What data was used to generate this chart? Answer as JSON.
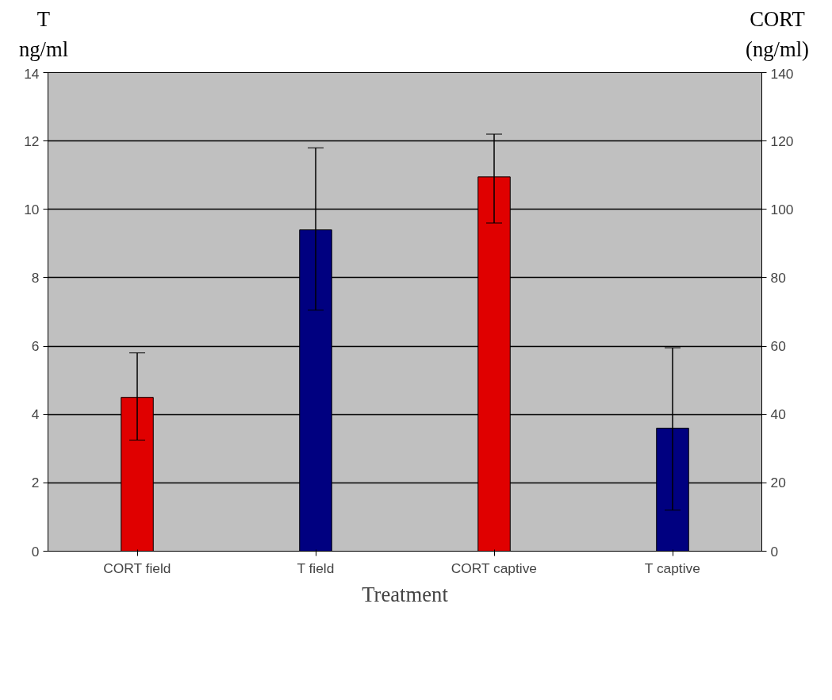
{
  "chart_data": {
    "type": "bar",
    "xlabel": "Treatment",
    "ylabel": "T\nng/ml",
    "y2label": "CORT\n(ng/ml)",
    "categories": [
      "CORT field",
      "T field",
      "CORT captive",
      "T captive"
    ],
    "series": [
      {
        "color": "#e00000",
        "axis": "y2",
        "values": [
          45,
          null,
          109.5,
          null
        ],
        "errors": [
          [
            32.5,
            58
          ],
          null,
          [
            96,
            122
          ],
          null
        ]
      },
      {
        "color": "#000080",
        "values": [
          null,
          9.4,
          null,
          3.6
        ],
        "errors": [
          null,
          [
            7.05,
            11.8
          ],
          null,
          [
            1.2,
            5.95
          ]
        ]
      }
    ],
    "ylim": [
      0,
      14
    ],
    "yticks": [
      0,
      2,
      4,
      6,
      8,
      10,
      12,
      14
    ],
    "y2lim": [
      0,
      140
    ],
    "y2ticks": [
      0,
      20,
      40,
      60,
      80,
      100,
      120,
      140
    ],
    "grid": "y"
  }
}
